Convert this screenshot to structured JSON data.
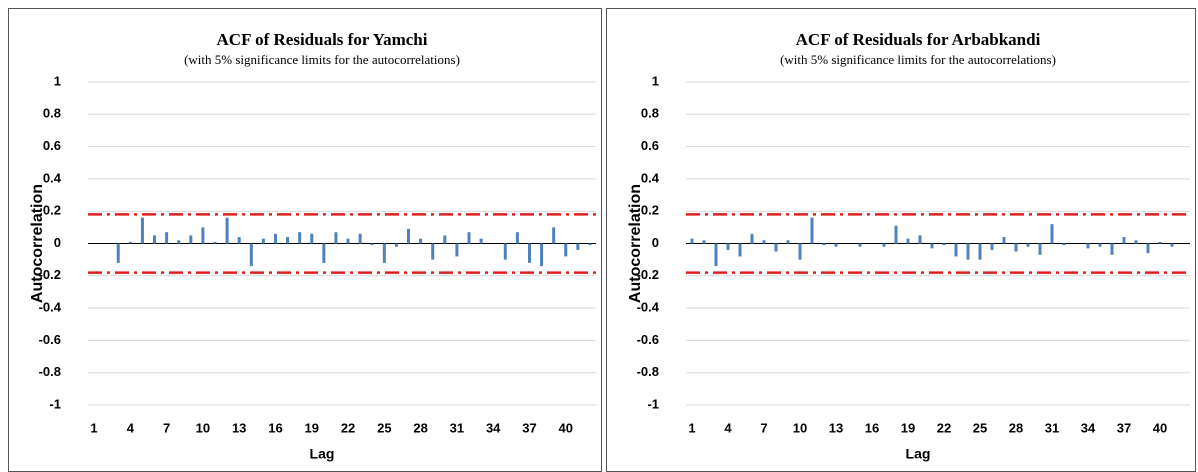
{
  "chart_data": [
    {
      "type": "bar",
      "title": "ACF of Residuals for Yamchi",
      "subtitle": "(with 5% significance  limits  for  the autocorrelations)",
      "x_label": "Lag",
      "y_label": "Autocorrelation",
      "categories": [
        1,
        null,
        null,
        4,
        null,
        null,
        7,
        null,
        null,
        10,
        null,
        null,
        13,
        null,
        null,
        16,
        null,
        null,
        19,
        null,
        null,
        22,
        null,
        null,
        25,
        null,
        null,
        28,
        null,
        null,
        31,
        null,
        null,
        34,
        null,
        null,
        37,
        null,
        null,
        40,
        null,
        null
      ],
      "values": [
        0,
        0,
        -0.12,
        0.01,
        0.16,
        0.05,
        0.07,
        0.02,
        0.05,
        0.1,
        0.01,
        0.16,
        0.04,
        -0.14,
        0.03,
        0.06,
        0.04,
        0.07,
        0.06,
        -0.12,
        0.07,
        0.03,
        0.06,
        -0.01,
        -0.12,
        -0.02,
        0.09,
        0.03,
        -0.1,
        0.05,
        -0.08,
        0.07,
        0.03,
        0,
        -0.1,
        0.07,
        -0.12,
        -0.14,
        0.1,
        -0.08,
        -0.04,
        -0.01
      ],
      "color": "#4f81bd",
      "limits": [
        0.18,
        -0.18
      ],
      "limit_color": "#e02020",
      "ylim": [
        -1,
        1
      ],
      "yticks": [
        -1,
        -0.8,
        -0.6,
        -0.4,
        -0.2,
        0,
        0.2,
        0.4,
        0.6,
        0.8,
        1
      ],
      "grid": true
    },
    {
      "type": "bar",
      "title": "ACF of Residuals for Arbabkandi",
      "subtitle": "(with 5% significance  limits  for  the autocorrelations)",
      "x_label": "Lag",
      "y_label": "Autocorrelation",
      "categories": [
        1,
        null,
        null,
        4,
        null,
        null,
        7,
        null,
        null,
        10,
        null,
        null,
        13,
        null,
        null,
        16,
        null,
        null,
        19,
        null,
        null,
        22,
        null,
        null,
        25,
        null,
        null,
        28,
        null,
        null,
        31,
        null,
        null,
        34,
        null,
        null,
        37,
        null,
        null,
        40,
        null,
        null
      ],
      "values": [
        0.03,
        0.02,
        -0.14,
        -0.04,
        -0.08,
        0.06,
        0.02,
        -0.05,
        0.02,
        -0.1,
        0.16,
        -0.01,
        -0.02,
        0,
        -0.02,
        0,
        -0.02,
        0.11,
        0.03,
        0.05,
        -0.03,
        -0.01,
        -0.08,
        -0.1,
        -0.1,
        -0.04,
        0.04,
        -0.05,
        -0.02,
        -0.07,
        0.12,
        -0.01,
        0,
        -0.03,
        -0.02,
        -0.07,
        0.04,
        0.02,
        -0.06,
        0.01,
        -0.02,
        0
      ],
      "color": "#4f81bd",
      "limits": [
        0.18,
        -0.18
      ],
      "limit_color": "#e02020",
      "ylim": [
        -1,
        1
      ],
      "yticks": [
        -1,
        -0.8,
        -0.6,
        -0.4,
        -0.2,
        0,
        0.2,
        0.4,
        0.6,
        0.8,
        1
      ],
      "grid": true
    }
  ]
}
